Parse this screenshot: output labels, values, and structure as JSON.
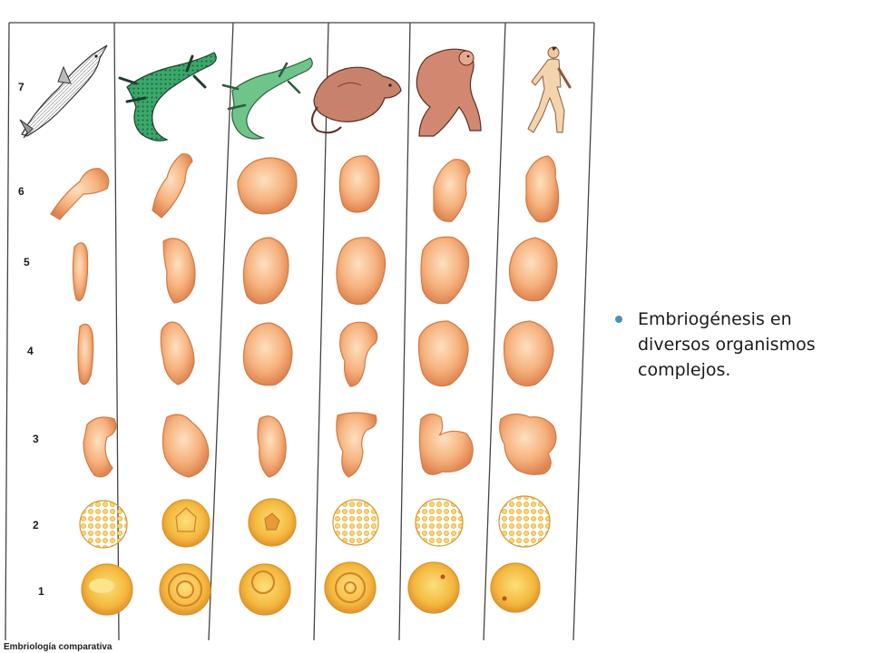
{
  "figure": {
    "stage_labels": [
      "7",
      "6",
      "5",
      "4",
      "3",
      "2",
      "1"
    ],
    "caption": "Embriología comparativa",
    "animals": [
      "shark-icon",
      "salamander-icon",
      "lizard-icon",
      "opossum-icon",
      "monkey-icon",
      "human-icon"
    ]
  },
  "text_panel": {
    "bullets": [
      {
        "text": "Embriogénesis en diversos organismos complejos."
      }
    ]
  },
  "colors": {
    "bullet": "#4a90b8",
    "embryo_fill": "#f4b27a",
    "embryo_stroke": "#d27a45",
    "egg_fill": "#f7c24e",
    "grid_line": "#444444"
  }
}
